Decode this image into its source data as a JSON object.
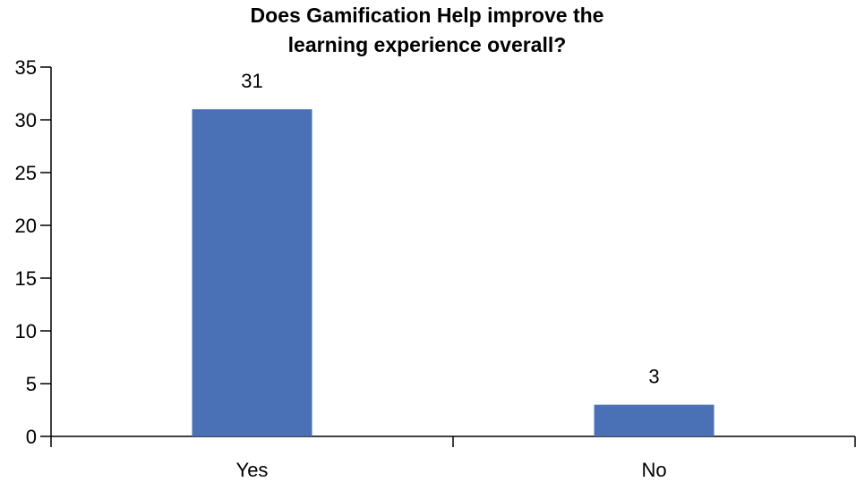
{
  "chart_data": {
    "type": "bar",
    "title": [
      "Does Gamification Help improve the",
      "learning experience overall?"
    ],
    "categories": [
      "Yes",
      "No"
    ],
    "values": [
      31,
      3
    ],
    "data_labels": [
      "31",
      "3"
    ],
    "xlabel": "",
    "ylabel": "",
    "ylim": [
      0,
      35
    ],
    "yticks": [
      0,
      5,
      10,
      15,
      20,
      25,
      30,
      35
    ],
    "grid": false,
    "legend": "none",
    "bar_color": "#4a70b6"
  }
}
